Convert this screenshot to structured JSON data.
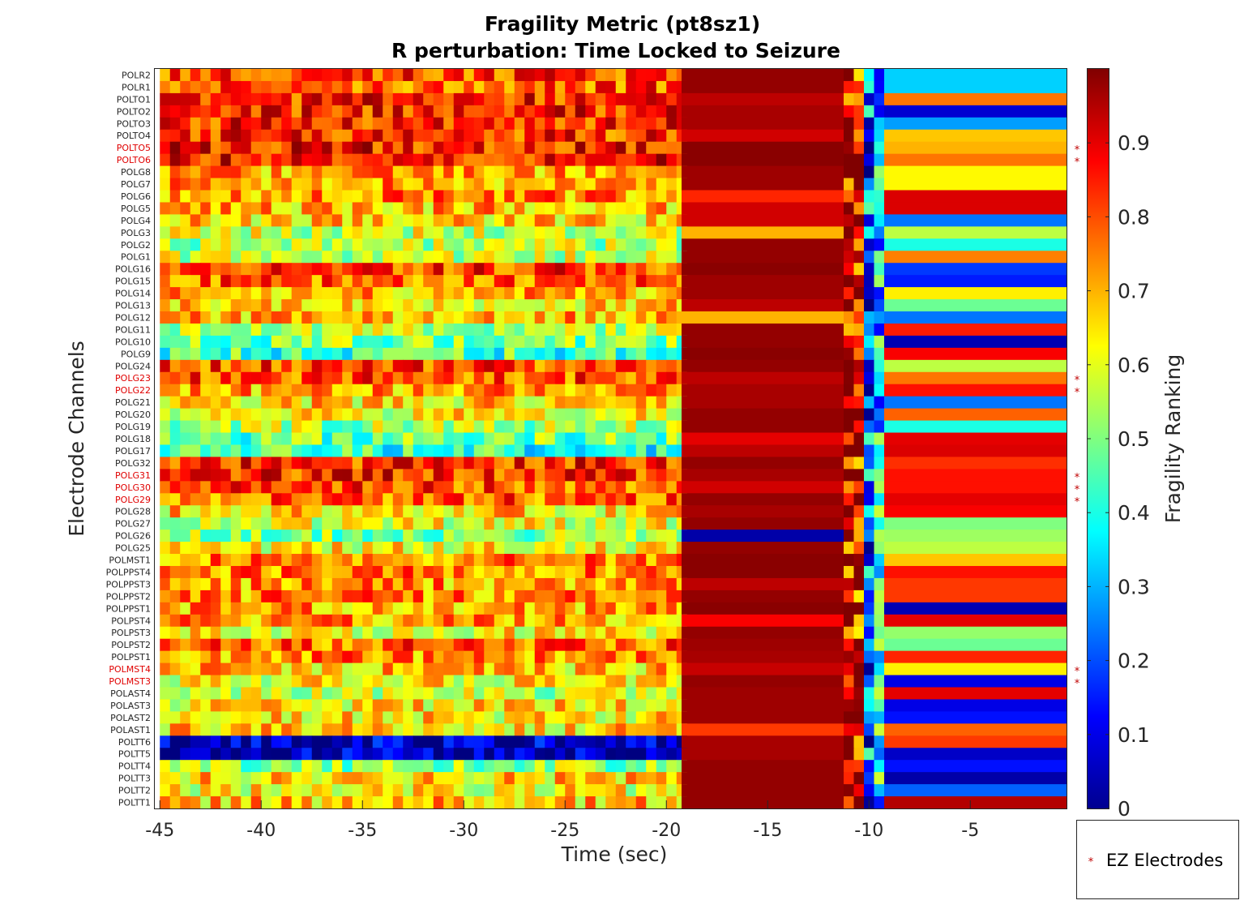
{
  "chart_data": {
    "type": "heatmap",
    "title": "Fragility Metric (pt8sz1)",
    "subtitle": "R perturbation:  Time Locked to Seizure",
    "xlabel": "Time (sec)",
    "ylabel": "Electrode Channels",
    "xlim": [
      -45.25,
      -0.25
    ],
    "xticks": [
      -45,
      -40,
      -35,
      -30,
      -25,
      -20,
      -15,
      -10,
      -5
    ],
    "colorbar": {
      "label": "Fragility Ranking",
      "range": [
        0,
        1
      ],
      "ticks": [
        "0",
        "0.1",
        "0.2",
        "0.3",
        "0.4",
        "0.5",
        "0.6",
        "0.7",
        "0.8",
        "0.9"
      ],
      "colormap": "jet"
    },
    "legend": {
      "marker": "*",
      "label": "EZ Electrodes",
      "location": "bottom-right outside"
    },
    "channels": [
      "POLR2",
      "POLR1",
      "POLTO1",
      "POLTO2",
      "POLTO3",
      "POLTO4",
      "POLTO5",
      "POLTO6",
      "POLG8",
      "POLG7",
      "POLG6",
      "POLG5",
      "POLG4",
      "POLG3",
      "POLG2",
      "POLG1",
      "POLG16",
      "POLG15",
      "POLG14",
      "POLG13",
      "POLG12",
      "POLG11",
      "POLG10",
      "POLG9",
      "POLG24",
      "POLG23",
      "POLG22",
      "POLG21",
      "POLG20",
      "POLG19",
      "POLG18",
      "POLG17",
      "POLG32",
      "POLG31",
      "POLG30",
      "POLG29",
      "POLG28",
      "POLG27",
      "POLG26",
      "POLG25",
      "POLMST1",
      "POLPPST4",
      "POLPPST3",
      "POLPPST2",
      "POLPPST1",
      "POLPST4",
      "POLPST3",
      "POLPST2",
      "POLPST1",
      "POLMST4",
      "POLMST3",
      "POLAST4",
      "POLAST3",
      "POLAST2",
      "POLAST1",
      "POLTT6",
      "POLTT5",
      "POLTT4",
      "POLTT3",
      "POLTT2",
      "POLTT1"
    ],
    "ez_channels": [
      "POLTO5",
      "POLTO6",
      "POLG23",
      "POLG22",
      "POLG31",
      "POLG30",
      "POLG29",
      "POLMST4",
      "POLMST3"
    ],
    "time_windows": {
      "preictal": {
        "start": -45,
        "end": -19.25,
        "step": 0.5
      },
      "ictal_band": {
        "start": -19.25,
        "end": -11.25
      },
      "transition": {
        "start": -11.25,
        "end": -9.25,
        "step": 0.5
      },
      "postictal": {
        "start": -9.25,
        "end": -0.25
      }
    },
    "preictal_base": [
      0.82,
      0.8,
      0.85,
      0.84,
      0.84,
      0.83,
      0.86,
      0.86,
      0.72,
      0.72,
      0.74,
      0.7,
      0.66,
      0.58,
      0.55,
      0.58,
      0.82,
      0.78,
      0.7,
      0.66,
      0.7,
      0.55,
      0.5,
      0.44,
      0.8,
      0.8,
      0.72,
      0.66,
      0.62,
      0.54,
      0.48,
      0.42,
      0.84,
      0.84,
      0.8,
      0.78,
      0.66,
      0.6,
      0.52,
      0.62,
      0.74,
      0.74,
      0.72,
      0.74,
      0.72,
      0.72,
      0.62,
      0.78,
      0.74,
      0.68,
      0.62,
      0.56,
      0.64,
      0.64,
      0.66,
      0.06,
      0.04,
      0.52,
      0.66,
      0.62,
      0.68
    ],
    "ictal_band": [
      0.98,
      0.98,
      0.94,
      0.96,
      0.96,
      0.92,
      0.99,
      0.99,
      0.97,
      0.97,
      0.84,
      0.92,
      0.92,
      0.7,
      0.98,
      0.98,
      0.99,
      0.97,
      0.97,
      0.94,
      0.7,
      0.98,
      0.98,
      0.99,
      0.98,
      0.94,
      0.96,
      0.96,
      0.98,
      0.98,
      0.9,
      0.94,
      0.98,
      0.96,
      0.92,
      0.98,
      0.96,
      0.98,
      0.04,
      0.98,
      0.99,
      0.99,
      0.94,
      0.98,
      0.99,
      0.88,
      0.98,
      0.97,
      0.96,
      0.93,
      0.98,
      0.97,
      0.97,
      0.97,
      0.82,
      0.96,
      0.96,
      0.98,
      0.98,
      0.98,
      0.98
    ],
    "transition_pattern": [
      0.92,
      0.88,
      0.22,
      0.35
    ],
    "postictal": [
      0.33,
      0.33,
      0.76,
      0.08,
      0.28,
      0.68,
      0.7,
      0.76,
      0.63,
      0.63,
      0.91,
      0.91,
      0.24,
      0.56,
      0.4,
      0.75,
      0.18,
      0.15,
      0.64,
      0.48,
      0.24,
      0.85,
      0.05,
      0.88,
      0.56,
      0.76,
      0.86,
      0.24,
      0.78,
      0.4,
      0.9,
      0.91,
      0.83,
      0.86,
      0.86,
      0.9,
      0.88,
      0.5,
      0.53,
      0.56,
      0.68,
      0.86,
      0.82,
      0.82,
      0.05,
      0.9,
      0.52,
      0.48,
      0.84,
      0.64,
      0.1,
      0.9,
      0.1,
      0.14,
      0.78,
      0.82,
      0.07,
      0.14,
      0.04,
      0.22,
      0.95
    ]
  },
  "legend": {
    "marker": "*",
    "label": "EZ Electrodes"
  }
}
